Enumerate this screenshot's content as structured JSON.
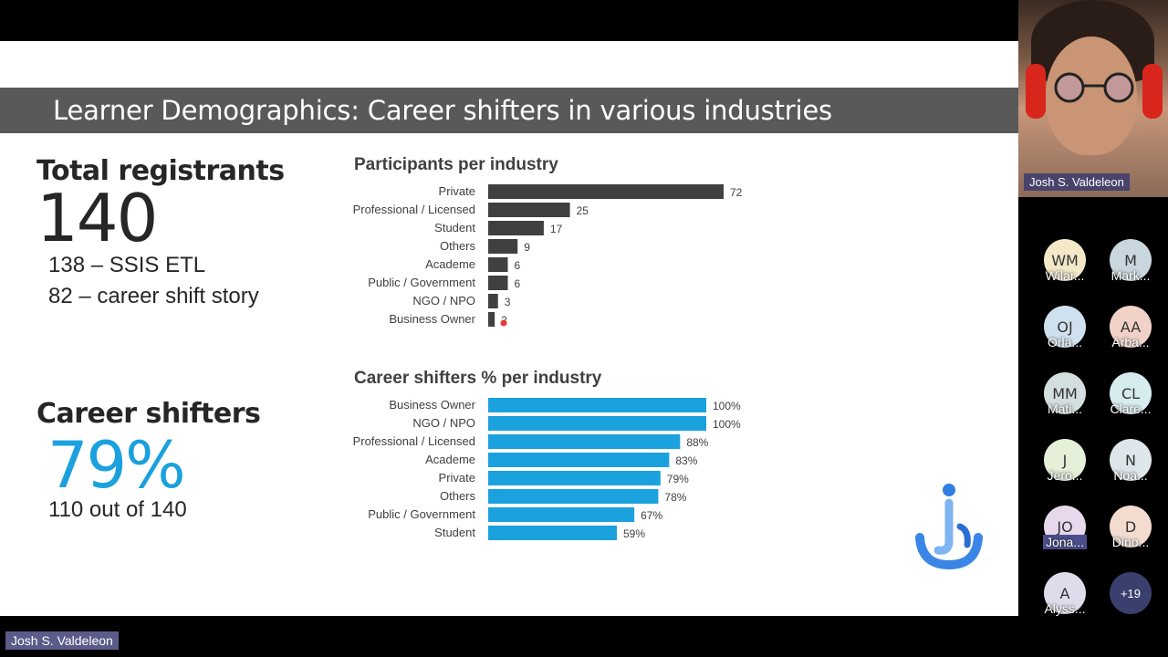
{
  "slide": {
    "title": "Learner Demographics: Career shifters in various industries",
    "total_label": "Total registrants",
    "total_value": "140",
    "sub1": "138 – SSIS ETL",
    "sub2": "82 – career shift story",
    "shift_label": "Career shifters",
    "shift_value": "79%",
    "shift_sub": "110 out of 140"
  },
  "chart_data": [
    {
      "type": "bar",
      "title": "Participants per industry",
      "categories": [
        "Private",
        "Professional / Licensed",
        "Student",
        "Others",
        "Academe",
        "Public / Government",
        "NGO / NPO",
        "Business Owner"
      ],
      "values": [
        72,
        25,
        17,
        9,
        6,
        6,
        3,
        2
      ],
      "labels": [
        "72",
        "25",
        "17",
        "9",
        "6",
        "6",
        "3",
        "2"
      ],
      "xlim": [
        0,
        72
      ],
      "color": "#404040",
      "orientation": "horizontal"
    },
    {
      "type": "bar",
      "title": "Career shifters % per industry",
      "categories": [
        "Business Owner",
        "NGO / NPO",
        "Professional / Licensed",
        "Academe",
        "Private",
        "Others",
        "Public / Government",
        "Student"
      ],
      "values": [
        100,
        100,
        88,
        83,
        79,
        78,
        67,
        59
      ],
      "labels": [
        "100%",
        "100%",
        "88%",
        "83%",
        "79%",
        "78%",
        "67%",
        "59%"
      ],
      "xlim": [
        0,
        100
      ],
      "color": "#1aa1de",
      "orientation": "horizontal"
    }
  ],
  "meeting": {
    "presenter_name": "Josh S. Valdeleon",
    "webcam_name": "Josh S. Valdeleon",
    "participants": [
      {
        "initials": "WM",
        "name": "Wilar...",
        "color": "#f3e9c8"
      },
      {
        "initials": "M",
        "name": "Mark...",
        "color": "#c9d6dd"
      },
      {
        "initials": "OJ",
        "name": "Orla...",
        "color": "#cfe0ee"
      },
      {
        "initials": "AA",
        "name": "Arba...",
        "color": "#f1d2c8"
      },
      {
        "initials": "MM",
        "name": "Mati...",
        "color": "#d3dede"
      },
      {
        "initials": "CL",
        "name": "Clare...",
        "color": "#d6ecef"
      },
      {
        "initials": "J",
        "name": "Jero...",
        "color": "#e6efd8"
      },
      {
        "initials": "N",
        "name": "Noa...",
        "color": "#dde6ea"
      },
      {
        "initials": "JO",
        "name": "Jona...",
        "color": "#e7d8ec"
      },
      {
        "initials": "D",
        "name": "Dino...",
        "color": "#f3dccf"
      },
      {
        "initials": "A",
        "name": "Alyss...",
        "color": "#dcdcea"
      }
    ],
    "more_count": "+19"
  }
}
